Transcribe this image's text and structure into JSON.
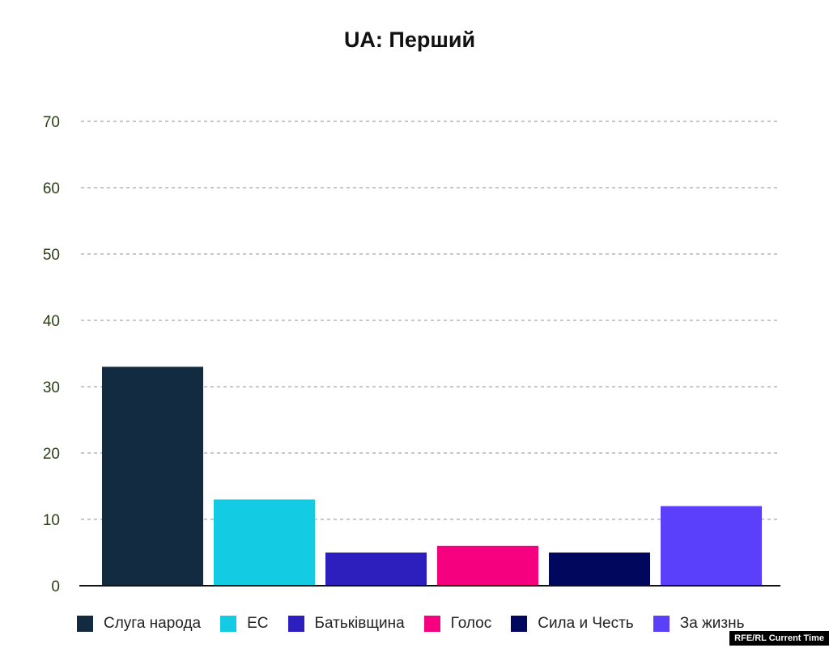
{
  "chart_data": {
    "type": "bar",
    "title": "UA: Перший",
    "categories": [
      "Слуга народа",
      "ЕС",
      "Батьківщина",
      "Голос",
      "Сила и Честь",
      "За жизнь"
    ],
    "values": [
      33,
      13,
      5,
      6,
      5,
      12
    ],
    "colors": [
      "#122b40",
      "#13cbe3",
      "#2c1fbe",
      "#f5007f",
      "#02075e",
      "#5b40fb"
    ],
    "ylim": [
      0,
      70
    ],
    "yticks": [
      0,
      10,
      20,
      30,
      40,
      50,
      60,
      70
    ],
    "xlabel": "",
    "ylabel": "",
    "grid": true,
    "legend_position": "bottom"
  },
  "credit": "RFE/RL Current Time"
}
